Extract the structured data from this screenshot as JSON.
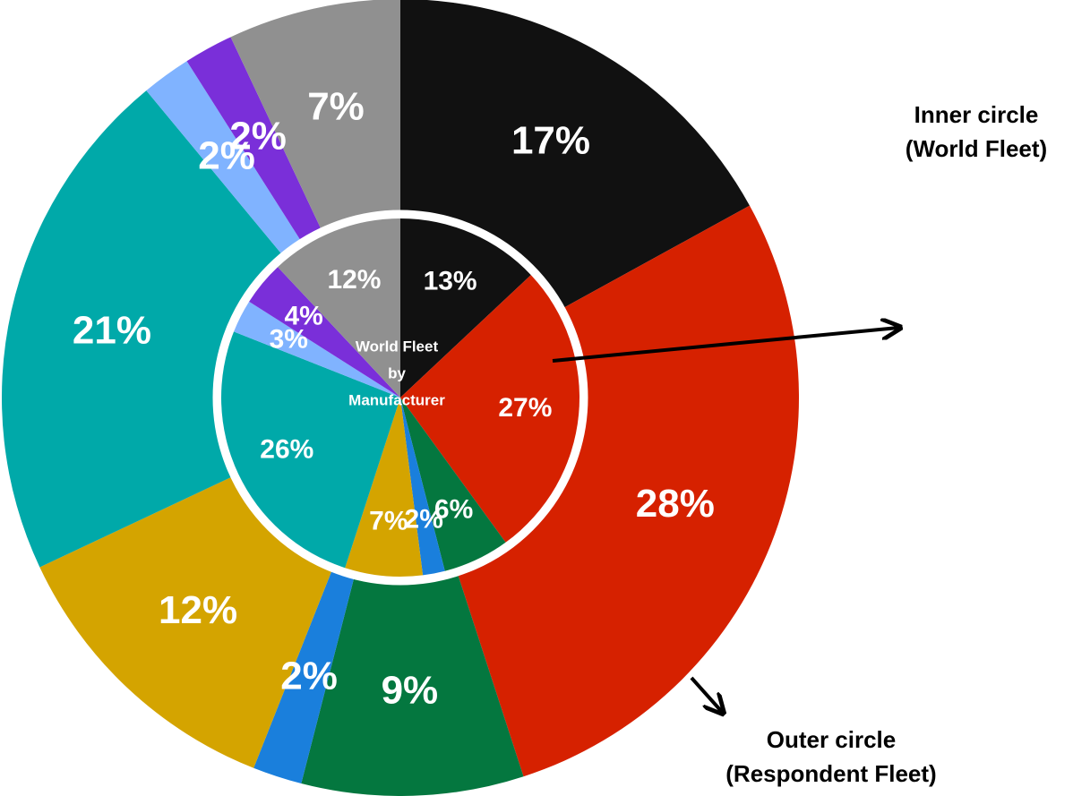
{
  "chart_data": {
    "type": "pie",
    "colors": [
      "#111111",
      "#d62100",
      "#04773f",
      "#1a7fdc",
      "#d4a400",
      "#00a9a9",
      "#80b3ff",
      "#7a2fd9",
      "#909090"
    ],
    "series": [
      {
        "values": [
          17,
          28,
          9,
          2,
          12,
          21,
          2,
          2,
          7
        ],
        "value_labels": [
          "17%",
          "28%",
          "9%",
          "2%",
          "12%",
          "21%",
          "2%",
          "2%",
          "7%"
        ]
      },
      {
        "values": [
          13,
          27,
          6,
          2,
          7,
          26,
          3,
          4,
          12
        ],
        "value_labels": [
          "13%",
          "27%",
          "6%",
          "2%",
          "7%",
          "26%",
          "3%",
          "4%",
          "12%"
        ]
      }
    ],
    "center_label": [
      "World Fleet",
      "by",
      "Manufacturer"
    ],
    "annotations": [
      [
        "Inner circle",
        "(World Fleet)"
      ],
      [
        "Outer circle",
        "(Respondent Fleet)"
      ]
    ]
  }
}
